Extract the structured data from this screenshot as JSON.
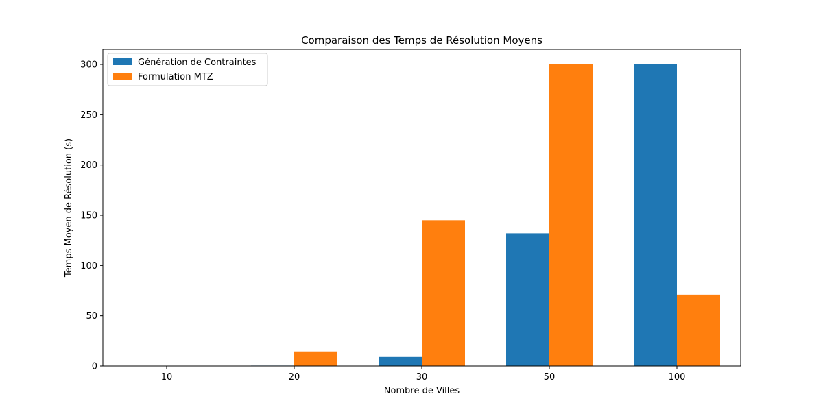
{
  "chart_data": {
    "type": "bar",
    "title": "Comparaison des Temps de Résolution Moyens",
    "xlabel": "Nombre de Villes",
    "ylabel": "Temps Moyen de Résolution (s)",
    "categories": [
      "10",
      "20",
      "30",
      "50",
      "100"
    ],
    "series": [
      {
        "name": "Génération de Contraintes",
        "color": "#1f77b4",
        "values": [
          0.1,
          0.4,
          9,
          132,
          300
        ]
      },
      {
        "name": "Formulation MTZ",
        "color": "#ff7f0e",
        "values": [
          0.2,
          14.5,
          145,
          300,
          71
        ]
      }
    ],
    "yticks": [
      0,
      50,
      100,
      150,
      200,
      250,
      300
    ],
    "ylim": [
      0,
      315
    ],
    "grid": false,
    "legend_position": "top-left"
  }
}
